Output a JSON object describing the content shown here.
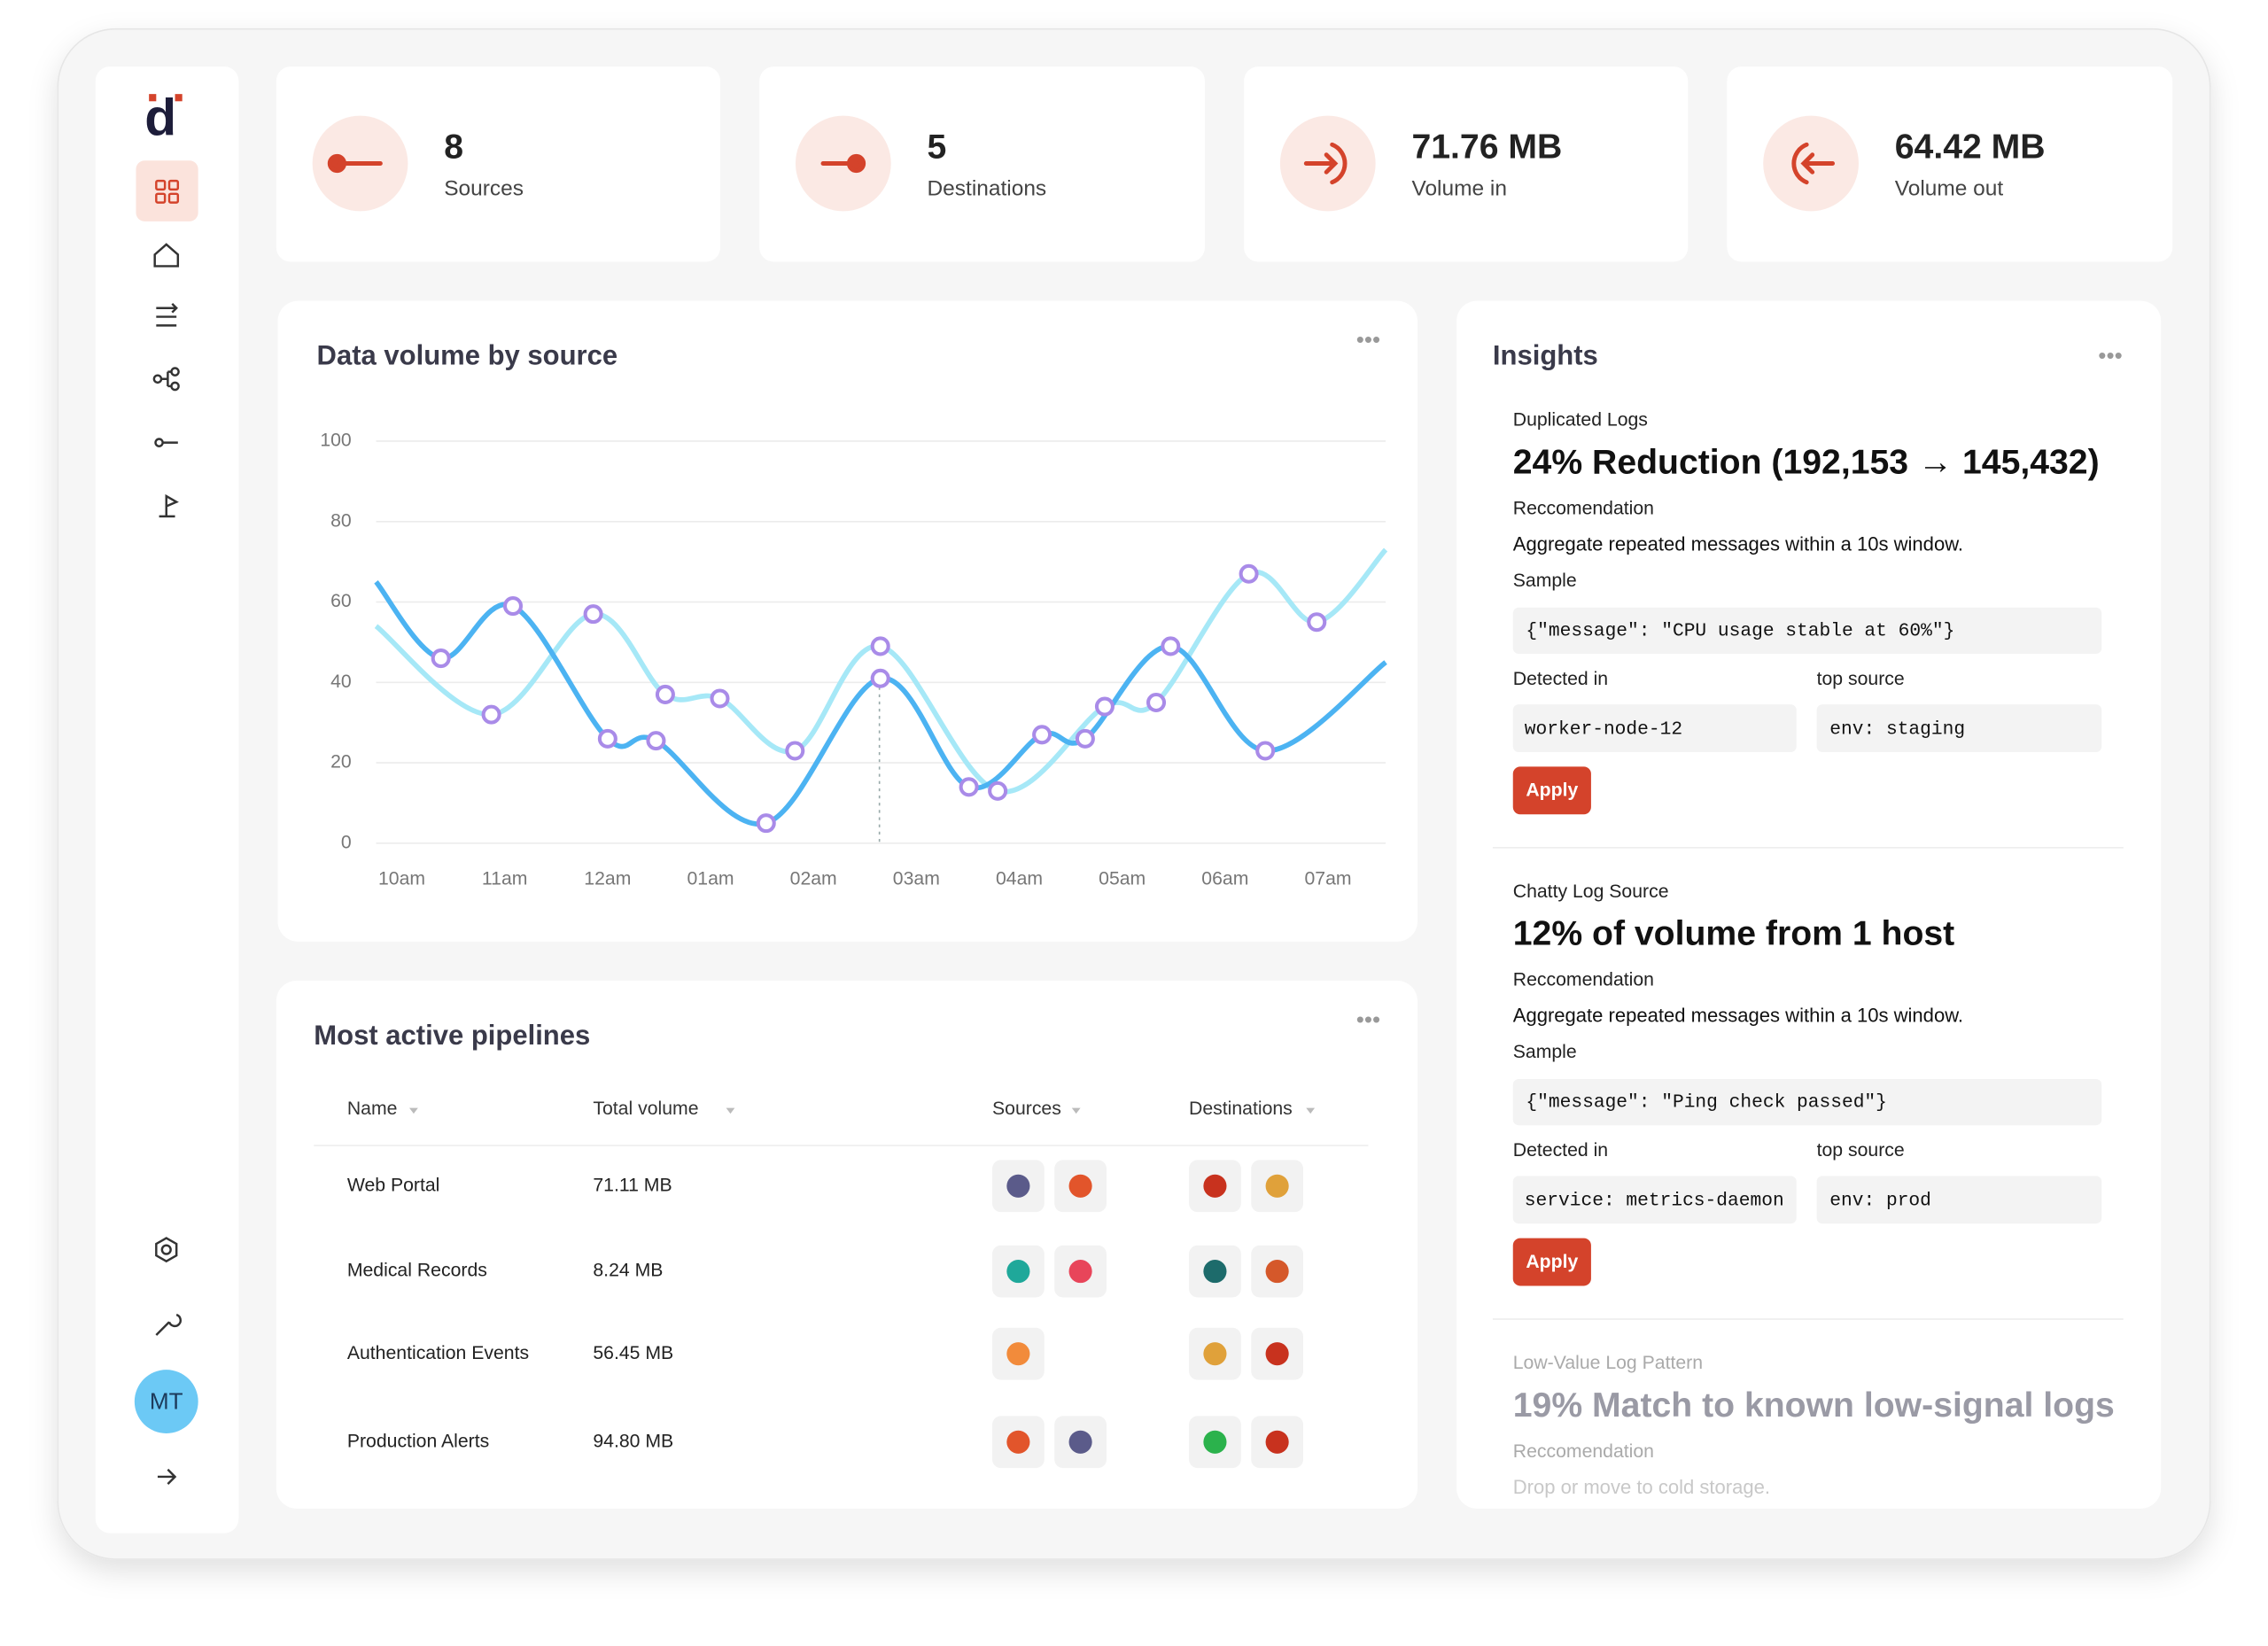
{
  "brand": "d",
  "user": "MT",
  "stats": [
    {
      "value": "8",
      "label": "Sources"
    },
    {
      "value": "5",
      "label": "Destinations"
    },
    {
      "value": "71.76 MB",
      "label": "Volume in"
    },
    {
      "value": "64.42 MB",
      "label": "Volume out"
    }
  ],
  "chart_data": {
    "type": "line",
    "title": "Data volume by source",
    "x": [
      -0.25,
      0.38,
      1.08,
      2.0,
      2.47,
      3.54,
      4.65,
      5.51,
      6.22,
      6.64,
      7.47,
      8.39,
      9.56
    ],
    "xlim": [
      -0.25,
      9.56
    ],
    "xticks": [
      {
        "value": 0,
        "label": "10am"
      },
      {
        "value": 1,
        "label": "11am"
      },
      {
        "value": 2,
        "label": "12am"
      },
      {
        "value": 3,
        "label": "01am"
      },
      {
        "value": 4,
        "label": "02am"
      },
      {
        "value": 5,
        "label": "03am"
      },
      {
        "value": 6,
        "label": "04am"
      },
      {
        "value": 7,
        "label": "05am"
      },
      {
        "value": 8,
        "label": "06am"
      },
      {
        "value": 9,
        "label": "07am"
      }
    ],
    "ylim": [
      0,
      100
    ],
    "yticks": [
      0,
      20,
      40,
      60,
      80,
      100
    ],
    "grid": true,
    "series": [
      {
        "color": "#a6e8f7",
        "x": [
          -0.25,
          0.87,
          1.86,
          2.56,
          3.09,
          3.82,
          4.65,
          5.79,
          6.83,
          7.33,
          8.23,
          8.89,
          9.56
        ],
        "values": [
          54,
          32,
          57,
          37,
          36,
          23,
          49,
          13,
          34,
          35,
          67,
          55,
          73
        ]
      },
      {
        "color": "#4cb3f2",
        "x": [
          -0.25,
          0.38,
          1.08,
          2.0,
          2.47,
          3.54,
          4.65,
          5.51,
          6.22,
          6.64,
          7.47,
          8.39,
          9.56
        ],
        "values": [
          65,
          46,
          59,
          26,
          25.5,
          5,
          41,
          14,
          27,
          26,
          49,
          23,
          45
        ]
      }
    ]
  },
  "pipelines": {
    "title": "Most active pipelines",
    "columns": [
      "Name",
      "Total volume",
      "Sources",
      "Destinations"
    ],
    "rows": [
      [
        "Web Portal",
        "71.11 MB"
      ],
      [
        "Medical Records",
        "8.24 MB"
      ],
      [
        "Authentication Events",
        "56.45 MB"
      ],
      [
        "Production Alerts",
        "94.80 MB"
      ]
    ]
  },
  "insights": {
    "title": "Insights",
    "items": [
      {
        "category": "Duplicated Logs",
        "headline": "24% Reduction (192,153 → 145,432)",
        "rec_label": "Reccomendation",
        "recommendation": "Aggregate repeated messages within a 10s window.",
        "sample_label": "Sample",
        "sample": "{\"message\": \"CPU usage stable at 60%\"}",
        "detected_label": "Detected in",
        "detected": "worker-node-12",
        "top_label": "top source",
        "top": "env: staging",
        "button": "Apply"
      },
      {
        "category": "Chatty Log Source",
        "headline": "12% of volume from 1 host",
        "rec_label": "Reccomendation",
        "recommendation": "Aggregate repeated messages within a 10s window.",
        "sample_label": "Sample",
        "sample": "{\"message\": \"Ping check passed\"}",
        "detected_label": "Detected in",
        "detected": "service: metrics-daemon",
        "top_label": "top source",
        "top": "env: prod",
        "button": "Apply"
      },
      {
        "category": "Low-Value Log Pattern",
        "headline": "19% Match to known low-signal logs",
        "rec_label": "Reccomendation",
        "recommendation": "Drop or move to cold storage."
      }
    ]
  }
}
